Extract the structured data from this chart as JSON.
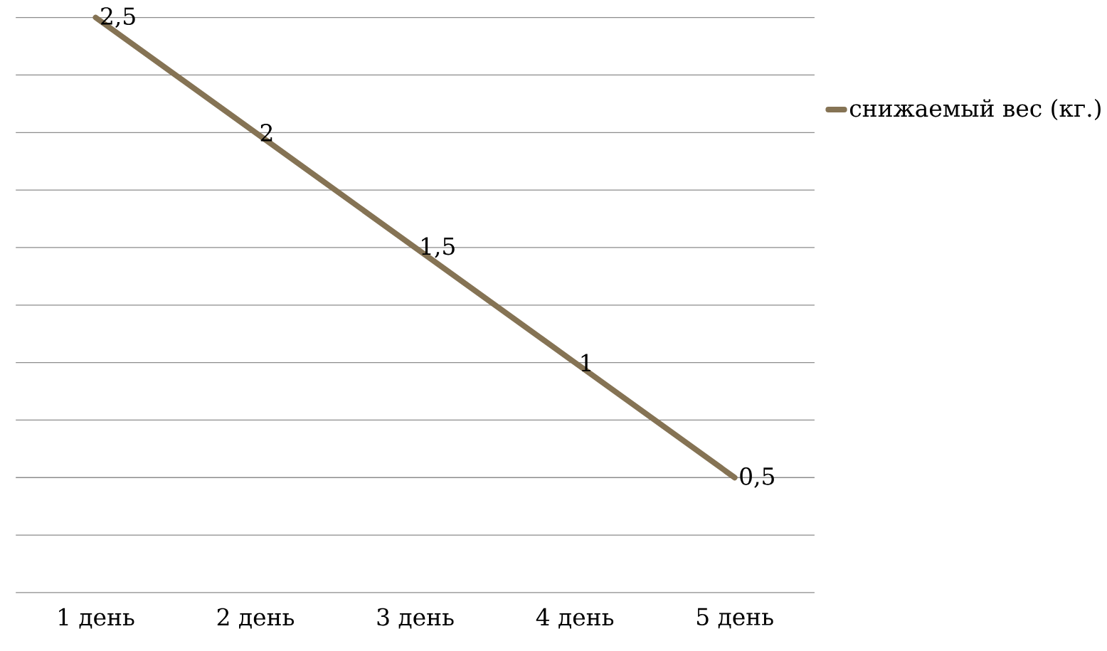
{
  "chart_data": {
    "type": "line",
    "categories": [
      "1 день",
      "2 день",
      "3 день",
      "4 день",
      "5 день"
    ],
    "series": [
      {
        "name": "снижаемый вес (кг.)",
        "color": "#857354",
        "values": [
          2.5,
          2,
          1.5,
          1,
          0.5
        ],
        "value_labels": [
          "2,5",
          "2",
          "1,5",
          "1",
          "0,5"
        ]
      }
    ],
    "ylim": [
      0,
      2.5
    ],
    "yticks": [
      0,
      0.25,
      0.5,
      0.75,
      1,
      1.25,
      1.5,
      1.75,
      2,
      2.25,
      2.5
    ],
    "grid": "y",
    "legend": "right",
    "tick_labels": "x"
  }
}
